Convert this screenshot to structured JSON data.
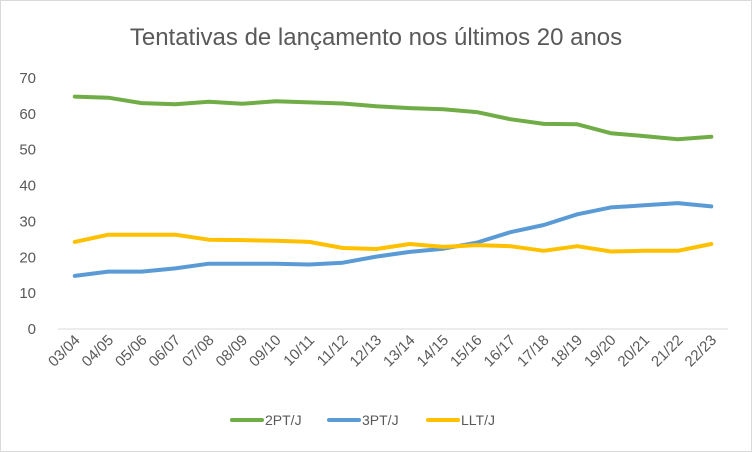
{
  "chart_data": {
    "type": "line",
    "title": "Tentativas de lançamento nos últimos 20 anos",
    "xlabel": "",
    "ylabel": "",
    "ylim": [
      0,
      70
    ],
    "yticks": [
      0,
      10,
      20,
      30,
      40,
      50,
      60,
      70
    ],
    "grid": false,
    "legend_position": "bottom",
    "categories": [
      "03/04",
      "04/05",
      "05/06",
      "06/07",
      "07/08",
      "08/09",
      "09/10",
      "10/11",
      "11/12",
      "12/13",
      "13/14",
      "14/15",
      "15/16",
      "16/17",
      "17/18",
      "18/19",
      "19/20",
      "20/21",
      "21/22",
      "22/23"
    ],
    "series": [
      {
        "name": "2PT/J",
        "color": "#70ad47",
        "values": [
          64.8,
          64.5,
          63.0,
          62.7,
          63.4,
          62.8,
          63.5,
          63.2,
          62.9,
          62.1,
          61.6,
          61.3,
          60.5,
          58.5,
          57.2,
          57.1,
          54.6,
          53.8,
          52.9,
          53.6
        ]
      },
      {
        "name": "3PT/J",
        "color": "#5b9bd5",
        "values": [
          14.8,
          16.0,
          16.0,
          16.9,
          18.2,
          18.2,
          18.2,
          18.0,
          18.5,
          20.2,
          21.5,
          22.4,
          24.1,
          27.0,
          29.0,
          32.0,
          33.9,
          34.5,
          35.1,
          34.2
        ]
      },
      {
        "name": "LLT/J",
        "color": "#ffc000",
        "values": [
          24.3,
          26.3,
          26.3,
          26.3,
          24.9,
          24.8,
          24.6,
          24.3,
          22.6,
          22.3,
          23.7,
          22.9,
          23.4,
          23.1,
          21.8,
          23.1,
          21.6,
          21.8,
          21.8,
          23.7
        ]
      }
    ]
  }
}
